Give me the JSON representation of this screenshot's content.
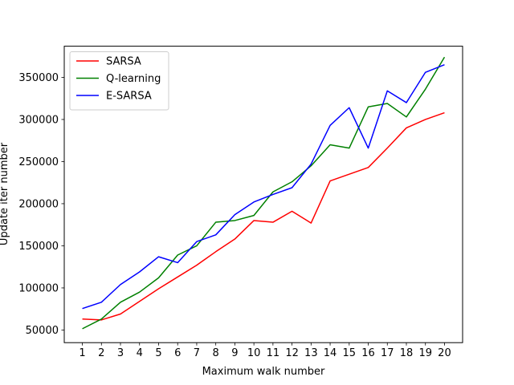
{
  "chart_data": {
    "type": "line",
    "title": "",
    "xlabel": "Maximum walk number",
    "ylabel": "Update iter number",
    "x": [
      1,
      2,
      3,
      4,
      5,
      6,
      7,
      8,
      9,
      10,
      11,
      12,
      13,
      14,
      15,
      16,
      17,
      18,
      19,
      20
    ],
    "xticks": [
      "1",
      "2",
      "3",
      "4",
      "5",
      "6",
      "7",
      "8",
      "9",
      "10",
      "11",
      "12",
      "13",
      "14",
      "15",
      "16",
      "17",
      "18",
      "19",
      "20"
    ],
    "yticks": [
      50000,
      100000,
      150000,
      200000,
      250000,
      300000,
      350000
    ],
    "ytick_labels": [
      "50000",
      "100000",
      "150000",
      "200000",
      "250000",
      "300000",
      "350000"
    ],
    "xlim": [
      0.05,
      20.95
    ],
    "ylim": [
      35000,
      387000
    ],
    "grid": false,
    "legend_position": "top-left",
    "series": [
      {
        "name": "SARSA",
        "color": "#ff0000",
        "values": [
          63000,
          62000,
          69000,
          84000,
          99000,
          113000,
          127000,
          143000,
          158000,
          180000,
          178000,
          191000,
          177000,
          227000,
          235000,
          243000,
          266000,
          290000,
          300000,
          308000
        ]
      },
      {
        "name": "Q-learning",
        "color": "#008000",
        "values": [
          51500,
          63000,
          83000,
          95000,
          112000,
          139000,
          150000,
          178000,
          180000,
          186000,
          214000,
          226000,
          245000,
          270000,
          266000,
          315000,
          319000,
          303000,
          336000,
          374000
        ]
      },
      {
        "name": "E-SARSA",
        "color": "#0000ff",
        "values": [
          75500,
          83000,
          104000,
          119000,
          137000,
          130000,
          155000,
          163000,
          187000,
          202000,
          211000,
          219000,
          247000,
          293000,
          314000,
          266000,
          334000,
          320000,
          356000,
          365000
        ]
      }
    ]
  }
}
